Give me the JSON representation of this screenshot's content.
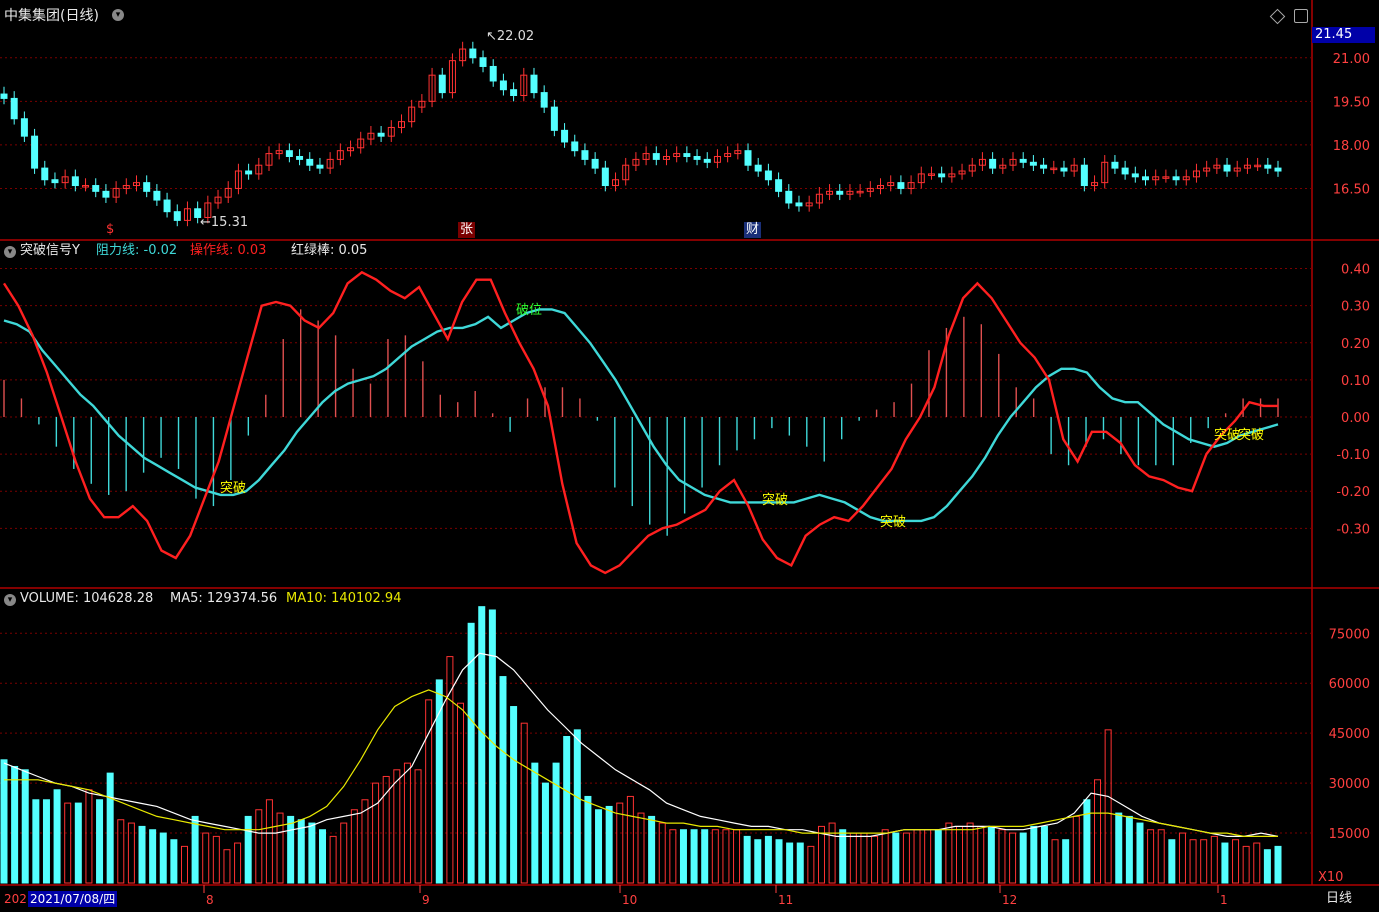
{
  "header": {
    "stock_title": "中集集团(日线)",
    "price_box": "21.45",
    "high_marker": "22.02",
    "low_marker": "15.31",
    "event_s": "$",
    "event_zhang": "张",
    "event_cai": "财"
  },
  "indicator_panel": {
    "name": "突破信号Y",
    "resist_label": "阻力线: -0.02",
    "operate_label": "操作线: 0.03",
    "bar_label": "红绿棒: 0.05",
    "signal_break": "突破",
    "signal_breakdown": "破位"
  },
  "volume_panel": {
    "vol_label": "VOLUME: 104628.28",
    "ma5_label": "MA5: 129374.56",
    "ma10_label": "MA10: 140102.94",
    "unit": "X10"
  },
  "footer": {
    "year_stub": "202",
    "date_box": "2021/07/08/四",
    "period": "日线"
  },
  "colors": {
    "up": "#ff3232",
    "down": "#54ffff",
    "grid": "#7a0000",
    "resist": "#3fd8d8",
    "operate": "#ff2020",
    "ma10": "#e8e800",
    "ma5": "#ffffff"
  },
  "chart_data": [
    {
      "type": "candlestick",
      "ylim": [
        15.0,
        22.3
      ],
      "y_ticks": [
        "21.00",
        "19.50",
        "18.00",
        "16.50"
      ],
      "x_labels": [
        "8",
        "9",
        "10",
        "11",
        "12",
        "1"
      ],
      "closes": [
        19.6,
        18.9,
        18.3,
        17.2,
        16.8,
        16.7,
        16.9,
        16.6,
        16.6,
        16.4,
        16.2,
        16.5,
        16.6,
        16.7,
        16.4,
        16.1,
        15.7,
        15.4,
        15.8,
        15.5,
        16.0,
        16.2,
        16.5,
        17.1,
        17.0,
        17.3,
        17.7,
        17.8,
        17.6,
        17.5,
        17.3,
        17.2,
        17.5,
        17.8,
        17.9,
        18.2,
        18.4,
        18.3,
        18.6,
        18.8,
        19.3,
        19.5,
        20.4,
        19.8,
        20.9,
        21.3,
        21.0,
        20.7,
        20.2,
        19.9,
        19.7,
        20.4,
        19.8,
        19.3,
        18.5,
        18.1,
        17.8,
        17.5,
        17.2,
        16.6,
        16.8,
        17.3,
        17.5,
        17.7,
        17.5,
        17.6,
        17.7,
        17.6,
        17.5,
        17.4,
        17.6,
        17.7,
        17.8,
        17.3,
        17.1,
        16.8,
        16.4,
        16.0,
        15.9,
        16.0,
        16.3,
        16.4,
        16.3,
        16.4,
        16.4,
        16.5,
        16.6,
        16.7,
        16.5,
        16.7,
        17.0,
        17.0,
        16.9,
        17.0,
        17.1,
        17.3,
        17.5,
        17.2,
        17.3,
        17.5,
        17.4,
        17.3,
        17.2,
        17.2,
        17.1,
        17.3,
        16.6,
        16.7,
        17.4,
        17.2,
        17.0,
        16.9,
        16.8,
        16.9,
        16.9,
        16.8,
        16.9,
        17.1,
        17.2,
        17.3,
        17.1,
        17.2,
        17.3,
        17.3,
        17.2,
        17.1
      ]
    },
    {
      "type": "line",
      "ylim": [
        -0.45,
        0.45
      ],
      "y_ticks": [
        "0.40",
        "0.30",
        "0.20",
        "0.10",
        "0.00",
        "-0.10",
        "-0.20",
        "-0.30"
      ],
      "series": [
        {
          "name": "阻力线",
          "values": [
            0.26,
            0.25,
            0.23,
            0.18,
            0.14,
            0.1,
            0.06,
            0.03,
            -0.01,
            -0.05,
            -0.08,
            -0.11,
            -0.13,
            -0.15,
            -0.17,
            -0.19,
            -0.2,
            -0.21,
            -0.21,
            -0.2,
            -0.17,
            -0.13,
            -0.09,
            -0.04,
            0.0,
            0.04,
            0.07,
            0.09,
            0.1,
            0.11,
            0.13,
            0.16,
            0.19,
            0.21,
            0.23,
            0.24,
            0.24,
            0.25,
            0.27,
            0.24,
            0.26,
            0.28,
            0.29,
            0.29,
            0.28,
            0.24,
            0.2,
            0.15,
            0.1,
            0.04,
            -0.02,
            -0.08,
            -0.13,
            -0.17,
            -0.19,
            -0.21,
            -0.22,
            -0.23,
            -0.23,
            -0.23,
            -0.23,
            -0.23,
            -0.23,
            -0.22,
            -0.21,
            -0.22,
            -0.23,
            -0.25,
            -0.27,
            -0.28,
            -0.28,
            -0.28,
            -0.28,
            -0.27,
            -0.24,
            -0.2,
            -0.16,
            -0.11,
            -0.05,
            0.0,
            0.04,
            0.08,
            0.11,
            0.13,
            0.13,
            0.12,
            0.08,
            0.05,
            0.04,
            0.04,
            0.01,
            -0.02,
            -0.04,
            -0.06,
            -0.07,
            -0.08,
            -0.07,
            -0.05,
            -0.04,
            -0.03,
            -0.02
          ]
        },
        {
          "name": "操作线",
          "values": [
            0.36,
            0.3,
            0.22,
            0.12,
            0.0,
            -0.12,
            -0.22,
            -0.27,
            -0.27,
            -0.24,
            -0.28,
            -0.36,
            -0.38,
            -0.32,
            -0.22,
            -0.12,
            0.02,
            0.16,
            0.3,
            0.31,
            0.3,
            0.26,
            0.24,
            0.28,
            0.36,
            0.39,
            0.37,
            0.34,
            0.32,
            0.35,
            0.28,
            0.21,
            0.31,
            0.37,
            0.37,
            0.28,
            0.2,
            0.13,
            0.03,
            -0.18,
            -0.34,
            -0.4,
            -0.42,
            -0.4,
            -0.36,
            -0.32,
            -0.3,
            -0.29,
            -0.27,
            -0.25,
            -0.2,
            -0.17,
            -0.24,
            -0.33,
            -0.38,
            -0.4,
            -0.32,
            -0.29,
            -0.27,
            -0.28,
            -0.24,
            -0.19,
            -0.14,
            -0.06,
            0.0,
            0.08,
            0.22,
            0.32,
            0.36,
            0.32,
            0.26,
            0.2,
            0.16,
            0.1,
            -0.06,
            -0.12,
            -0.04,
            -0.04,
            -0.07,
            -0.13,
            -0.16,
            -0.17,
            -0.19,
            -0.2,
            -0.1,
            -0.05,
            -0.01,
            0.04,
            0.03,
            0.03
          ]
        },
        {
          "name": "红绿棒",
          "values": [
            0.1,
            0.05,
            -0.02,
            -0.08,
            -0.14,
            -0.18,
            -0.21,
            -0.2,
            -0.15,
            -0.11,
            -0.14,
            -0.22,
            -0.24,
            -0.17,
            -0.05,
            0.06,
            0.21,
            0.29,
            0.26,
            0.22,
            0.13,
            0.09,
            0.21,
            0.22,
            0.15,
            0.06,
            0.04,
            0.07,
            0.01,
            -0.04,
            0.05,
            0.08,
            0.08,
            0.05,
            -0.01,
            -0.19,
            -0.24,
            -0.29,
            -0.32,
            -0.26,
            -0.19,
            -0.13,
            -0.09,
            -0.06,
            -0.03,
            -0.05,
            -0.08,
            -0.12,
            -0.06,
            -0.01,
            0.02,
            0.04,
            0.09,
            0.18,
            0.24,
            0.27,
            0.25,
            0.17,
            0.08,
            0.05,
            -0.1,
            -0.13,
            -0.08,
            -0.06,
            -0.1,
            -0.13,
            -0.13,
            -0.13,
            -0.07,
            -0.03,
            0.01,
            0.05,
            0.05,
            0.05
          ]
        }
      ]
    },
    {
      "type": "bar",
      "ylim": [
        0,
        85000
      ],
      "y_ticks": [
        "75000",
        "60000",
        "45000",
        "30000",
        "15000"
      ],
      "series": [
        {
          "name": "VOLUME",
          "values": [
            37000,
            35000,
            34000,
            25000,
            25000,
            28000,
            24000,
            24000,
            28000,
            25000,
            33000,
            19000,
            18000,
            17000,
            16000,
            15000,
            13000,
            11000,
            20000,
            15000,
            14000,
            10000,
            12000,
            20000,
            22000,
            25000,
            21000,
            20000,
            19000,
            18000,
            16000,
            14000,
            18000,
            22000,
            25000,
            30000,
            32000,
            34000,
            36000,
            34000,
            55000,
            61000,
            68000,
            54000,
            78000,
            83000,
            82000,
            62000,
            53000,
            48000,
            36000,
            30000,
            36000,
            44000,
            46000,
            26000,
            22000,
            23000,
            24000,
            26000,
            21000,
            20000,
            18000,
            16000,
            16000,
            16000,
            16000,
            16000,
            16000,
            16000,
            14000,
            13000,
            14000,
            13000,
            12000,
            12000,
            11000,
            17000,
            18000,
            16000,
            15000,
            15000,
            14000,
            16000,
            15000,
            15000,
            16000,
            16000,
            16000,
            18000,
            17000,
            18000,
            17000,
            17000,
            16000,
            15000,
            15000,
            17000,
            17000,
            13000,
            13000,
            20000,
            25000,
            31000,
            46000,
            21000,
            20000,
            18000,
            16000,
            16000,
            13000,
            15000,
            13000,
            13000,
            14000,
            12000,
            13000,
            11000,
            12000,
            10000,
            11000
          ]
        },
        {
          "name": "MA5",
          "values": [
            36000,
            34000,
            32000,
            30000,
            29000,
            27000,
            26000,
            25000,
            24000,
            23000,
            21000,
            19000,
            18000,
            17000,
            16000,
            15000,
            15000,
            16000,
            17000,
            19000,
            20000,
            21000,
            24000,
            30000,
            35000,
            45000,
            55000,
            64000,
            69000,
            68000,
            64000,
            58000,
            52000,
            47000,
            42000,
            38000,
            34000,
            31000,
            28000,
            24000,
            22000,
            20000,
            19000,
            18000,
            17000,
            17000,
            16000,
            16000,
            15000,
            14000,
            14000,
            14000,
            15000,
            16000,
            16000,
            16000,
            17000,
            17000,
            17000,
            16000,
            16000,
            17000,
            18000,
            21000,
            27000,
            26000,
            23000,
            20000,
            18000,
            17000,
            16000,
            15000,
            14000,
            14000,
            15000,
            14000
          ]
        },
        {
          "name": "MA10",
          "values": [
            31000,
            31000,
            31000,
            30000,
            29000,
            28000,
            26000,
            24000,
            22000,
            20000,
            19000,
            18000,
            17000,
            16000,
            16000,
            16000,
            17000,
            18000,
            20000,
            23000,
            29000,
            37000,
            46000,
            53000,
            56000,
            58000,
            56000,
            52000,
            46000,
            41000,
            37000,
            34000,
            31000,
            28000,
            25000,
            23000,
            21000,
            20000,
            19000,
            18000,
            18000,
            17000,
            17000,
            16000,
            16000,
            16000,
            16000,
            15000,
            15000,
            15000,
            15000,
            15000,
            15000,
            16000,
            16000,
            16000,
            16000,
            16000,
            17000,
            17000,
            17000,
            18000,
            19000,
            20000,
            21000,
            21000,
            20000,
            19000,
            18000,
            17000,
            16000,
            15000,
            15000,
            14000,
            14000,
            14000
          ]
        }
      ]
    }
  ]
}
